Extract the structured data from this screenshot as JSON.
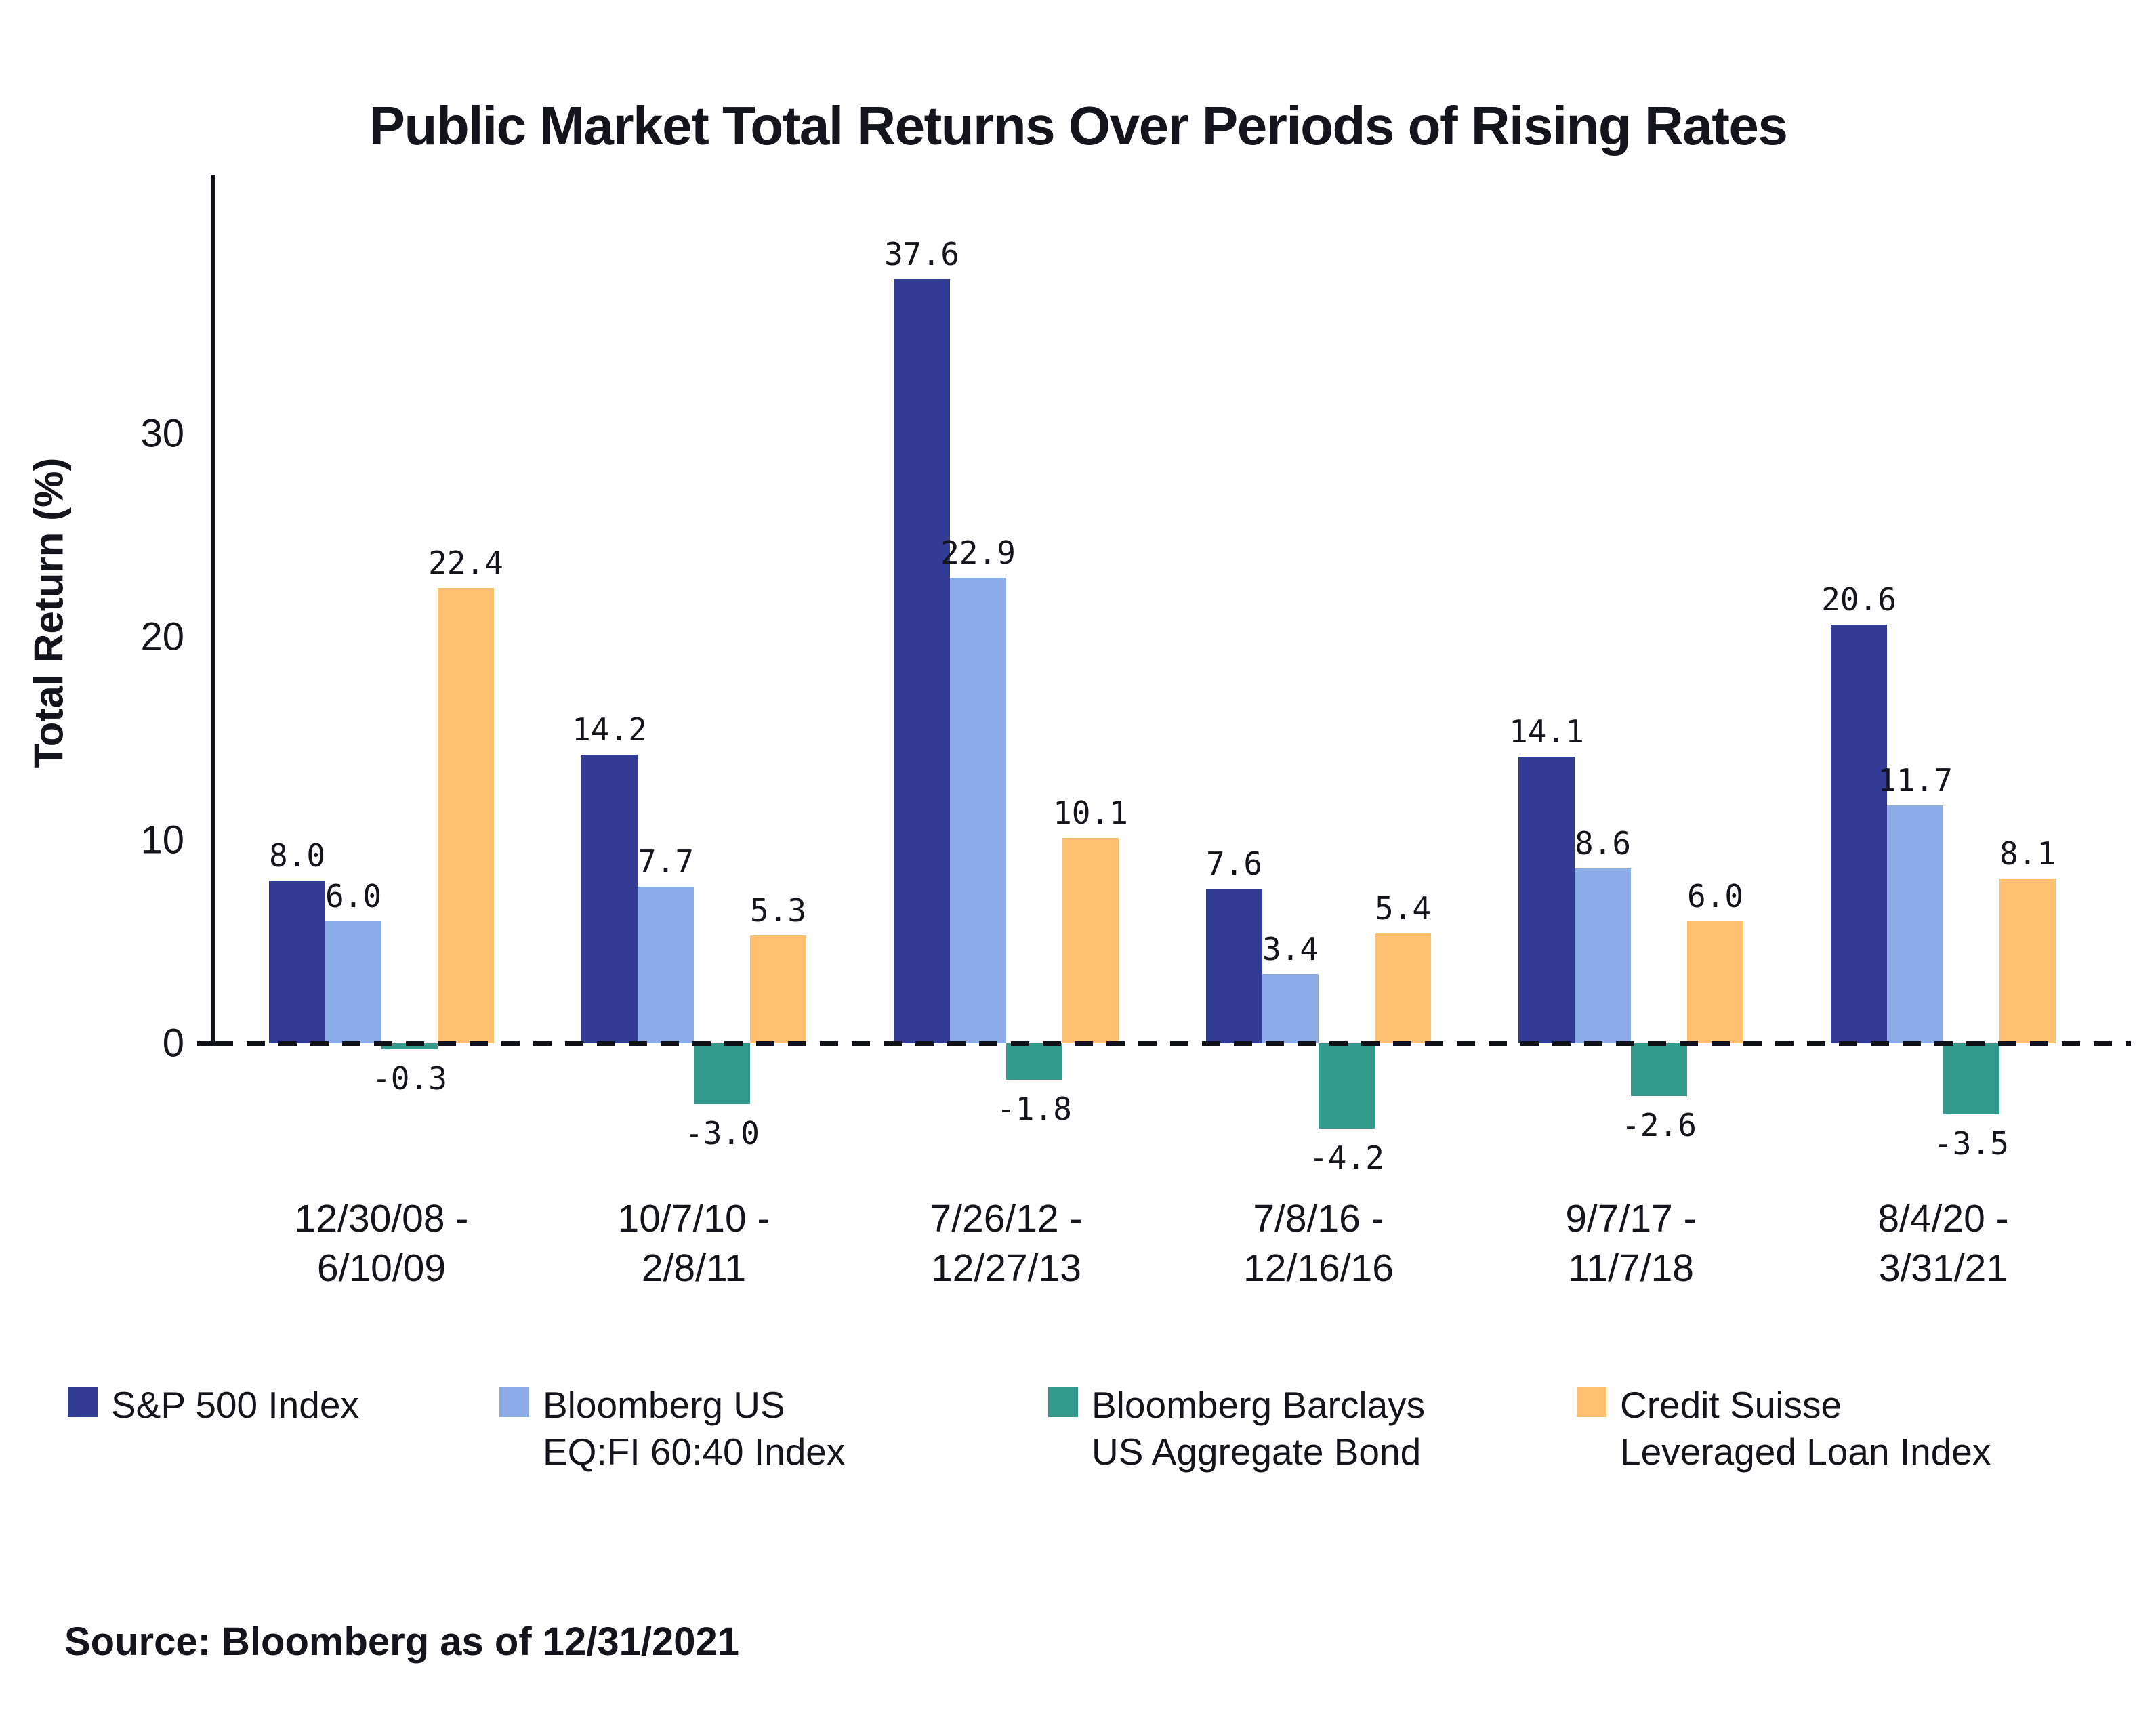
{
  "title": "Public Market Total Returns Over Periods of Rising Rates",
  "y_axis": {
    "label": "Total Return (%)"
  },
  "source": "Source: Bloomberg as of 12/31/2021",
  "colors": {
    "navy": "#323C94",
    "light_blue": "#8CACE8",
    "teal": "#349A8B",
    "orange": "#FEC06E",
    "text": "#14141C"
  },
  "chart_data": {
    "type": "bar",
    "title": "Public Market Total Returns Over Periods of Rising Rates",
    "xlabel": "",
    "ylabel": "Total Return (%)",
    "ylim": [
      -6,
      42
    ],
    "yticks": [
      0,
      10,
      20,
      30
    ],
    "grid": false,
    "zero_line_style": "dashed",
    "legend_position": "bottom",
    "categories": [
      [
        "12/30/08 -",
        "6/10/09"
      ],
      [
        "10/7/10 -",
        "2/8/11"
      ],
      [
        "7/26/12 -",
        "12/27/13"
      ],
      [
        "7/8/16 -",
        "12/16/16"
      ],
      [
        "9/7/17 -",
        "11/7/18"
      ],
      [
        "8/4/20 -",
        "3/31/21"
      ]
    ],
    "series": [
      {
        "name": "S&P 500 Index",
        "color": "#323C94",
        "values": [
          8.0,
          14.2,
          37.6,
          7.6,
          14.1,
          20.6
        ]
      },
      {
        "name": "Bloomberg US EQ:FI 60:40 Index",
        "color": "#8CACE8",
        "values": [
          6.0,
          7.7,
          22.9,
          3.4,
          8.6,
          11.7
        ]
      },
      {
        "name": "Bloomberg Barclays US Aggregate Bond",
        "color": "#349A8B",
        "values": [
          -0.3,
          -3.0,
          -1.8,
          -4.2,
          -2.6,
          -3.5
        ]
      },
      {
        "name": "Credit Suisse Leveraged Loan Index",
        "color": "#FEC06E",
        "values": [
          22.4,
          5.3,
          10.1,
          5.4,
          6.0,
          8.1
        ]
      }
    ]
  },
  "legend": {
    "items": [
      {
        "label_lines": [
          "S&P 500 Index"
        ],
        "color": "#323C94"
      },
      {
        "label_lines": [
          "Bloomberg US",
          "EQ:FI 60:40 Index"
        ],
        "color": "#8CACE8"
      },
      {
        "label_lines": [
          "Bloomberg Barclays",
          "US Aggregate Bond"
        ],
        "color": "#349A8B"
      },
      {
        "label_lines": [
          "Credit Suisse",
          "Leveraged Loan Index"
        ],
        "color": "#FEC06E"
      }
    ]
  }
}
